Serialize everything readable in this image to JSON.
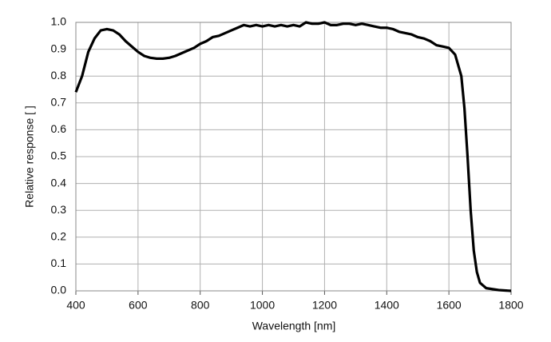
{
  "chart_data": {
    "type": "line",
    "x_label": "Wavelength [nm]",
    "y_label": "Relative response [ ]",
    "xlim": [
      400,
      1800
    ],
    "xticks": [
      400,
      600,
      800,
      1000,
      1200,
      1400,
      1600,
      1800
    ],
    "ylim": [
      0,
      1
    ],
    "yticks": [
      {
        "value": 0,
        "label": "0.0"
      },
      0.1,
      0.2,
      0.3,
      0.4,
      0.5,
      0.6,
      0.7,
      0.8,
      0.9,
      {
        "value": 1,
        "label": "1.0"
      }
    ],
    "grid": true,
    "x": [
      400,
      420,
      440,
      460,
      480,
      500,
      520,
      540,
      560,
      580,
      600,
      620,
      640,
      660,
      680,
      700,
      720,
      740,
      760,
      780,
      800,
      820,
      840,
      860,
      880,
      900,
      920,
      940,
      960,
      980,
      1000,
      1020,
      1040,
      1060,
      1080,
      1100,
      1120,
      1140,
      1160,
      1180,
      1200,
      1220,
      1240,
      1260,
      1280,
      1300,
      1320,
      1340,
      1360,
      1380,
      1400,
      1420,
      1440,
      1460,
      1480,
      1500,
      1520,
      1540,
      1560,
      1580,
      1600,
      1620,
      1640,
      1650,
      1660,
      1670,
      1680,
      1690,
      1700,
      1720,
      1760,
      1800
    ],
    "series": [
      {
        "color": "#000000",
        "values": [
          0.74,
          0.8,
          0.89,
          0.94,
          0.97,
          0.975,
          0.97,
          0.955,
          0.93,
          0.91,
          0.89,
          0.875,
          0.868,
          0.865,
          0.865,
          0.868,
          0.875,
          0.885,
          0.895,
          0.905,
          0.92,
          0.93,
          0.945,
          0.95,
          0.96,
          0.97,
          0.98,
          0.99,
          0.985,
          0.99,
          0.985,
          0.99,
          0.985,
          0.99,
          0.985,
          0.99,
          0.985,
          1.0,
          0.995,
          0.995,
          1.0,
          0.99,
          0.99,
          0.995,
          0.995,
          0.99,
          0.995,
          0.99,
          0.985,
          0.98,
          0.98,
          0.975,
          0.965,
          0.96,
          0.955,
          0.945,
          0.94,
          0.93,
          0.915,
          0.91,
          0.905,
          0.88,
          0.8,
          0.68,
          0.5,
          0.3,
          0.15,
          0.07,
          0.03,
          0.01,
          0.003,
          0.0
        ]
      }
    ]
  }
}
